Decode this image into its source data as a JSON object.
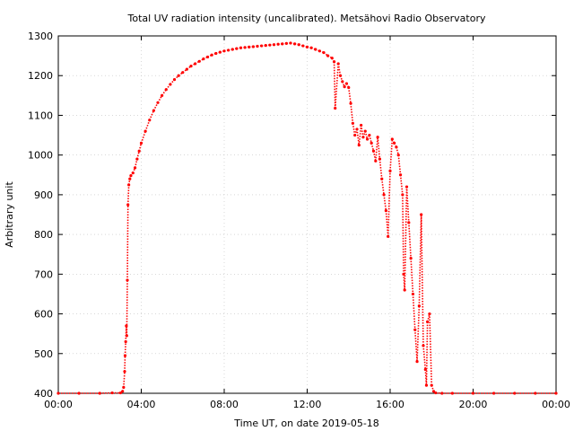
{
  "chart_data": {
    "type": "scatter",
    "title": "Total UV radiation intensity (uncalibrated). Metsähovi Radio Observatory",
    "xlabel": "Time UT, on date 2019-05-18",
    "ylabel": "Arbitrary unit",
    "xlim": [
      0,
      24
    ],
    "ylim": [
      400,
      1300
    ],
    "x_ticks": [
      {
        "value": 0,
        "label": "00:00"
      },
      {
        "value": 4,
        "label": "04:00"
      },
      {
        "value": 8,
        "label": "08:00"
      },
      {
        "value": 12,
        "label": "12:00"
      },
      {
        "value": 16,
        "label": "16:00"
      },
      {
        "value": 20,
        "label": "20:00"
      },
      {
        "value": 24,
        "label": "00:00"
      }
    ],
    "y_ticks": [
      {
        "value": 400,
        "label": "400"
      },
      {
        "value": 500,
        "label": "500"
      },
      {
        "value": 600,
        "label": "600"
      },
      {
        "value": 700,
        "label": "700"
      },
      {
        "value": 800,
        "label": "800"
      },
      {
        "value": 900,
        "label": "900"
      },
      {
        "value": 1000,
        "label": "1000"
      },
      {
        "value": 1100,
        "label": "1100"
      },
      {
        "value": 1200,
        "label": "1200"
      },
      {
        "value": 1300,
        "label": "1300"
      }
    ],
    "grid": true,
    "series": [
      {
        "color": "#ff0000",
        "points": [
          [
            0.0,
            400
          ],
          [
            1.0,
            400
          ],
          [
            2.0,
            400
          ],
          [
            2.6,
            401
          ],
          [
            3.0,
            401
          ],
          [
            3.1,
            405
          ],
          [
            3.15,
            415
          ],
          [
            3.2,
            455
          ],
          [
            3.22,
            495
          ],
          [
            3.25,
            530
          ],
          [
            3.28,
            570
          ],
          [
            3.3,
            545
          ],
          [
            3.33,
            685
          ],
          [
            3.36,
            875
          ],
          [
            3.4,
            925
          ],
          [
            3.45,
            940
          ],
          [
            3.5,
            948
          ],
          [
            3.6,
            955
          ],
          [
            3.7,
            968
          ],
          [
            3.8,
            990
          ],
          [
            3.9,
            1010
          ],
          [
            4.0,
            1030
          ],
          [
            4.2,
            1060
          ],
          [
            4.4,
            1088
          ],
          [
            4.6,
            1112
          ],
          [
            4.8,
            1132
          ],
          [
            5.0,
            1150
          ],
          [
            5.2,
            1165
          ],
          [
            5.4,
            1178
          ],
          [
            5.6,
            1190
          ],
          [
            5.8,
            1200
          ],
          [
            6.0,
            1208
          ],
          [
            6.2,
            1216
          ],
          [
            6.4,
            1224
          ],
          [
            6.6,
            1230
          ],
          [
            6.8,
            1236
          ],
          [
            7.0,
            1242
          ],
          [
            7.2,
            1247
          ],
          [
            7.4,
            1252
          ],
          [
            7.6,
            1256
          ],
          [
            7.8,
            1259
          ],
          [
            8.0,
            1262
          ],
          [
            8.2,
            1264
          ],
          [
            8.4,
            1266
          ],
          [
            8.6,
            1268
          ],
          [
            8.8,
            1270
          ],
          [
            9.0,
            1271
          ],
          [
            9.2,
            1272
          ],
          [
            9.4,
            1273
          ],
          [
            9.6,
            1274
          ],
          [
            9.8,
            1275
          ],
          [
            10.0,
            1276
          ],
          [
            10.2,
            1277
          ],
          [
            10.4,
            1278
          ],
          [
            10.6,
            1279
          ],
          [
            10.8,
            1280
          ],
          [
            11.0,
            1281
          ],
          [
            11.2,
            1282
          ],
          [
            11.4,
            1280
          ],
          [
            11.6,
            1278
          ],
          [
            11.8,
            1275
          ],
          [
            12.0,
            1272
          ],
          [
            12.2,
            1270
          ],
          [
            12.4,
            1266
          ],
          [
            12.6,
            1262
          ],
          [
            12.8,
            1258
          ],
          [
            13.0,
            1250
          ],
          [
            13.2,
            1244
          ],
          [
            13.3,
            1235
          ],
          [
            13.35,
            1118
          ],
          [
            13.5,
            1230
          ],
          [
            13.6,
            1200
          ],
          [
            13.7,
            1185
          ],
          [
            13.8,
            1172
          ],
          [
            13.9,
            1180
          ],
          [
            14.0,
            1170
          ],
          [
            14.1,
            1130
          ],
          [
            14.2,
            1080
          ],
          [
            14.3,
            1050
          ],
          [
            14.4,
            1065
          ],
          [
            14.5,
            1025
          ],
          [
            14.6,
            1075
          ],
          [
            14.7,
            1045
          ],
          [
            14.8,
            1060
          ],
          [
            14.9,
            1040
          ],
          [
            15.0,
            1050
          ],
          [
            15.1,
            1030
          ],
          [
            15.2,
            1010
          ],
          [
            15.3,
            985
          ],
          [
            15.4,
            1045
          ],
          [
            15.5,
            990
          ],
          [
            15.6,
            940
          ],
          [
            15.7,
            900
          ],
          [
            15.8,
            860
          ],
          [
            15.9,
            795
          ],
          [
            16.0,
            960
          ],
          [
            16.1,
            1040
          ],
          [
            16.2,
            1030
          ],
          [
            16.3,
            1020
          ],
          [
            16.4,
            1000
          ],
          [
            16.5,
            950
          ],
          [
            16.6,
            900
          ],
          [
            16.65,
            700
          ],
          [
            16.7,
            660
          ],
          [
            16.8,
            920
          ],
          [
            16.9,
            830
          ],
          [
            17.0,
            740
          ],
          [
            17.1,
            650
          ],
          [
            17.2,
            560
          ],
          [
            17.3,
            480
          ],
          [
            17.4,
            620
          ],
          [
            17.5,
            850
          ],
          [
            17.6,
            520
          ],
          [
            17.7,
            460
          ],
          [
            17.75,
            420
          ],
          [
            17.8,
            580
          ],
          [
            17.9,
            600
          ],
          [
            18.0,
            420
          ],
          [
            18.1,
            405
          ],
          [
            18.2,
            401
          ],
          [
            18.5,
            400
          ],
          [
            19.0,
            400
          ],
          [
            20.0,
            400
          ],
          [
            21.0,
            400
          ],
          [
            22.0,
            400
          ],
          [
            23.0,
            400
          ],
          [
            24.0,
            400
          ]
        ]
      }
    ]
  }
}
